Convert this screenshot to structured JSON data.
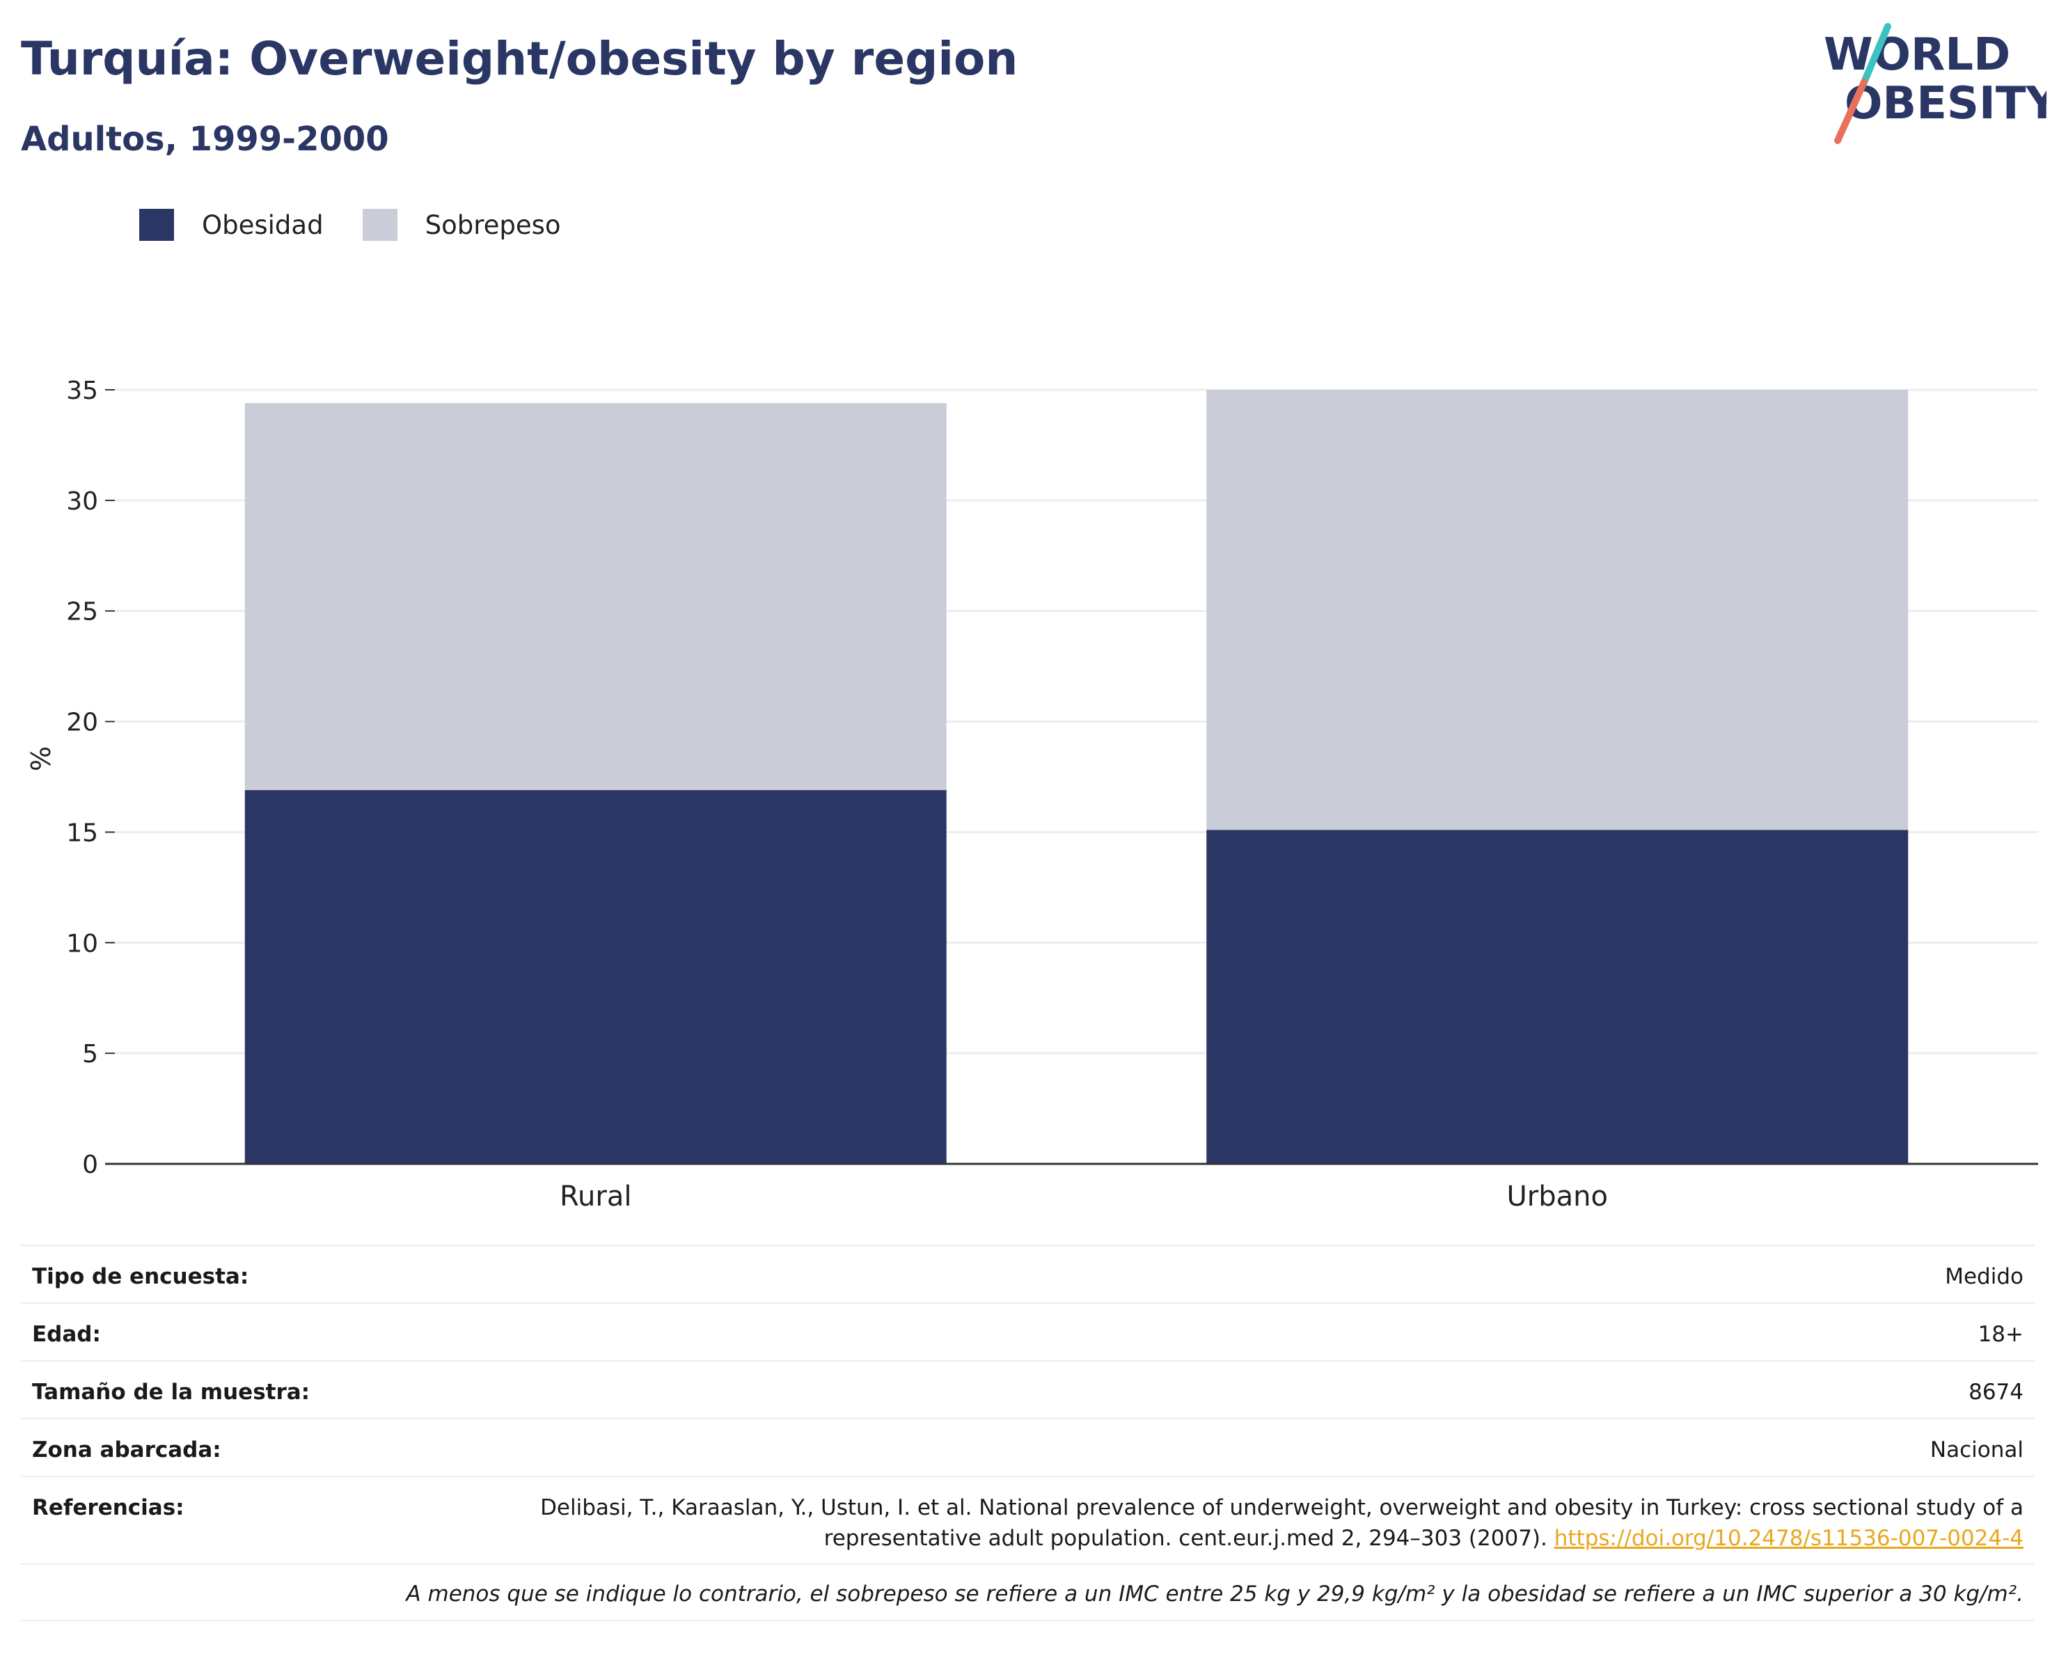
{
  "title": "Turquía: Overweight/obesity by region",
  "subtitle": "Adultos, 1999-2000",
  "logo": {
    "line1": "WORLD",
    "line2": "OBESITY"
  },
  "colors": {
    "obesity": "#2a3664",
    "overweight": "#cacdd8",
    "text": "#2a3664",
    "accent_teal": "#3cc2c0",
    "accent_coral": "#e9705c",
    "link": "#e8a81e"
  },
  "chart_data": {
    "type": "bar",
    "stacked": true,
    "categories": [
      "Rural",
      "Urbano"
    ],
    "series": [
      {
        "name": "Obesidad",
        "values": [
          16.9,
          15.1
        ]
      },
      {
        "name": "Sobrepeso",
        "values": [
          17.5,
          19.9
        ]
      }
    ],
    "ylabel": "%",
    "ylim": [
      0,
      35
    ],
    "yticks": [
      "0",
      "5",
      "10",
      "15",
      "20",
      "25",
      "30",
      "35"
    ],
    "grid": true,
    "legend": "top-left"
  },
  "info": {
    "survey_type": {
      "label": "Tipo de encuesta:",
      "value": "Medido"
    },
    "age": {
      "label": "Edad:",
      "value": "18+"
    },
    "sample_size": {
      "label": "Tamaño de la muestra:",
      "value": "8674"
    },
    "area": {
      "label": "Zona abarcada:",
      "value": "Nacional"
    },
    "references": {
      "label": "Referencias:",
      "text": "Delibasi, T., Karaaslan, Y., Ustun, I. et al. National prevalence of underweight, overweight and obesity in Turkey: cross sectional study of a representative adult population. cent.eur.j.med 2, 294–303 (2007).",
      "link": "https://doi.org/10.2478/s11536-007-0024-4"
    },
    "note": "A menos que se indique lo contrario, el sobrepeso se refiere a un IMC entre 25 kg y 29,9 kg/m² y la obesidad se refiere a un IMC superior a 30 kg/m²."
  }
}
